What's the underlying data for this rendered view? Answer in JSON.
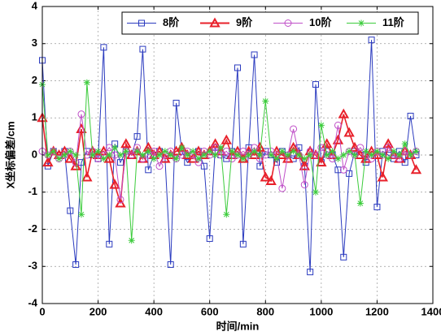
{
  "chart_data": {
    "type": "line",
    "x_label": "时间/min",
    "y_label": "X坐标偏差/cm",
    "x": [
      0,
      20,
      40,
      60,
      80,
      100,
      120,
      140,
      160,
      180,
      200,
      220,
      240,
      260,
      280,
      300,
      320,
      340,
      360,
      380,
      400,
      420,
      440,
      460,
      480,
      500,
      520,
      540,
      560,
      580,
      600,
      620,
      640,
      660,
      680,
      700,
      720,
      740,
      760,
      780,
      800,
      820,
      840,
      860,
      880,
      900,
      920,
      940,
      960,
      980,
      1000,
      1020,
      1040,
      1060,
      1080,
      1100,
      1120,
      1140,
      1160,
      1180,
      1200,
      1220,
      1240,
      1260,
      1280,
      1300,
      1320,
      1340
    ],
    "series": [
      {
        "name": "8阶",
        "color": "#2b3bbf",
        "marker": "square",
        "values": [
          2.55,
          -0.3,
          0.1,
          0,
          0.1,
          -1.5,
          -2.95,
          -0.2,
          0.1,
          0,
          -0.1,
          2.9,
          -2.4,
          0.3,
          -0.2,
          0.1,
          0,
          0.5,
          2.85,
          -0.4,
          0,
          0.1,
          -0.1,
          -2.95,
          1.4,
          0.1,
          -0.2,
          0,
          0.1,
          -0.3,
          -2.25,
          0.2,
          0,
          -0.1,
          0.1,
          2.35,
          -2.4,
          0.2,
          2.7,
          -0.3,
          0.1,
          0,
          -0.2,
          0.1,
          0,
          -0.1,
          0.2,
          -0.3,
          -3.15,
          1.9,
          -0.2,
          0.1,
          0,
          -0.4,
          -2.75,
          -0.5,
          0.1,
          0,
          -0.2,
          3.1,
          -1.4,
          0.1,
          0,
          -0.1,
          0.1,
          -0.2,
          1.05,
          0
        ]
      },
      {
        "name": "9阶",
        "color": "#e8202a",
        "marker": "triangle",
        "values": [
          1.0,
          -0.2,
          0.1,
          0,
          0.1,
          -0.1,
          -0.3,
          0.7,
          -0.6,
          0.1,
          0,
          0.1,
          -0.1,
          -0.8,
          -1.3,
          0.3,
          0,
          0.1,
          -0.1,
          0.2,
          0,
          0.1,
          -0.1,
          0,
          0.1,
          0.2,
          0,
          -0.1,
          0.1,
          0,
          0.1,
          0.3,
          0.1,
          0.4,
          0,
          0.1,
          -0.1,
          0.1,
          0,
          0.2,
          -0.6,
          -0.7,
          0.1,
          0,
          -0.1,
          0.2,
          0,
          -0.3,
          0.1,
          0,
          -0.2,
          0.3,
          0,
          0.4,
          1.1,
          0.6,
          0.2,
          0,
          -0.1,
          0.1,
          0,
          -0.6,
          0.3,
          0,
          -0.1,
          0.1,
          0,
          -0.4
        ]
      },
      {
        "name": "10阶",
        "color": "#c050c8",
        "marker": "circle",
        "values": [
          0.1,
          0,
          0.1,
          -0.1,
          0,
          0.1,
          -0.2,
          1.1,
          0,
          0.1,
          -0.1,
          0,
          0.2,
          0,
          -1.2,
          0.1,
          0,
          0.2,
          -0.1,
          0,
          0.1,
          -0.3,
          0,
          0.1,
          -0.1,
          0,
          0.1,
          0,
          -0.2,
          0.1,
          0,
          0.2,
          0,
          0.1,
          -0.1,
          0,
          0.1,
          0,
          0.2,
          -0.1,
          0,
          0.1,
          0,
          -0.9,
          0,
          0.7,
          0,
          -0.8,
          0.1,
          0,
          0.2,
          0,
          -0.1,
          0.8,
          -0.4,
          0.1,
          0,
          0.2,
          0,
          -0.1,
          0.1,
          0,
          0.2,
          0,
          -0.1,
          0.1,
          0,
          0.1
        ]
      },
      {
        "name": "11阶",
        "color": "#3ccc3c",
        "marker": "star",
        "values": [
          1.9,
          0,
          0.1,
          -0.1,
          0,
          0.1,
          0,
          -1.6,
          1.95,
          0,
          0.1,
          -0.1,
          0,
          0.2,
          0,
          0.1,
          -2.3,
          0.1,
          0,
          0.1,
          -0.1,
          0,
          0.1,
          0,
          -0.1,
          0.2,
          0,
          0.1,
          -0.1,
          0,
          0.1,
          0,
          0.2,
          -1.6,
          0.1,
          0,
          -0.1,
          0,
          0.1,
          0,
          1.45,
          0,
          -0.1,
          0.1,
          0,
          0.1,
          0,
          -0.1,
          0,
          -1.0,
          0.8,
          0,
          0.1,
          -0.1,
          0,
          0.1,
          0,
          -1.3,
          0.1,
          0,
          0.1,
          0,
          -0.1,
          0.1,
          0,
          0.3,
          0,
          0.1
        ]
      }
    ],
    "xlim": [
      0,
      1400
    ],
    "xticks": [
      0,
      200,
      400,
      600,
      800,
      1000,
      1200,
      1400
    ],
    "ylim": [
      -4,
      4
    ],
    "yticks": [
      -4,
      -3,
      -2,
      -1,
      0,
      1,
      2,
      3,
      4
    ],
    "grid": true,
    "legend": "upper right"
  }
}
